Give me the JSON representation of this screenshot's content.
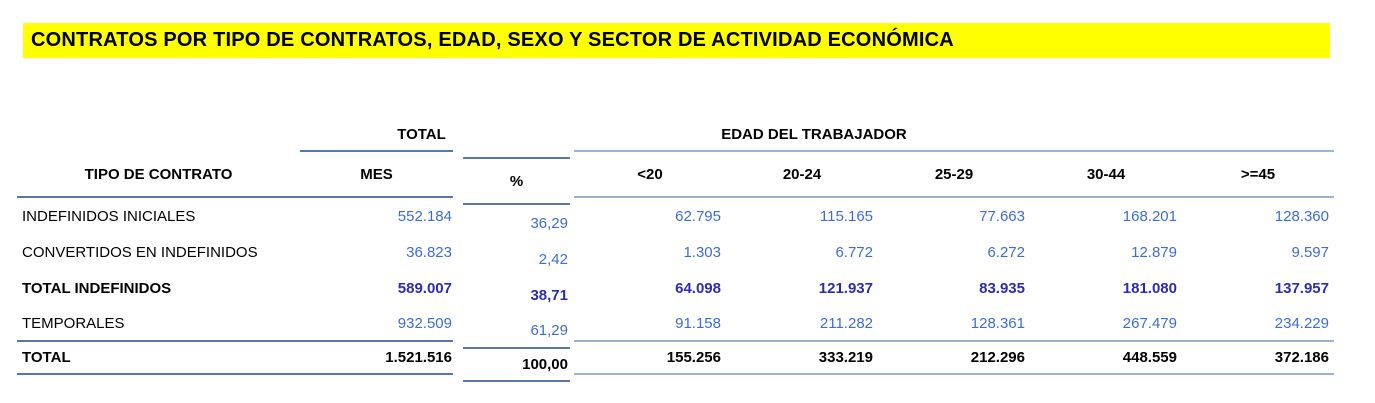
{
  "title": "CONTRATOS POR TIPO DE CONTRATOS, EDAD, SEXO Y SECTOR DE ACTIVIDAD ECONÓMICA",
  "table": {
    "group_headers": {
      "total": "TOTAL",
      "edad": "EDAD DEL TRABAJADOR"
    },
    "columns": {
      "tipo": "TIPO DE CONTRATO",
      "mes": "MES",
      "pct": "%",
      "ages": [
        "<20",
        "20-24",
        "25-29",
        "30-44",
        ">=45"
      ]
    },
    "rows": [
      {
        "label": "INDEFINIDOS INICIALES",
        "mes": "552.184",
        "pct": "36,29",
        "ages": [
          "62.795",
          "115.165",
          "77.663",
          "168.201",
          "128.360"
        ],
        "style": "normal"
      },
      {
        "label": "CONVERTIDOS EN INDEFINIDOS",
        "mes": "36.823",
        "pct": "2,42",
        "ages": [
          "1.303",
          "6.772",
          "6.272",
          "12.879",
          "9.597"
        ],
        "style": "normal"
      },
      {
        "label": "TOTAL INDEFINIDOS",
        "mes": "589.007",
        "pct": "38,71",
        "ages": [
          "64.098",
          "121.937",
          "83.935",
          "181.080",
          "137.957"
        ],
        "style": "subtotal"
      },
      {
        "label": "TEMPORALES",
        "mes": "932.509",
        "pct": "61,29",
        "ages": [
          "91.158",
          "211.282",
          "128.361",
          "267.479",
          "234.229"
        ],
        "style": "normal"
      },
      {
        "label": "TOTAL",
        "mes": "1.521.516",
        "pct": "100,00",
        "ages": [
          "155.256",
          "333.219",
          "212.296",
          "448.559",
          "372.186"
        ],
        "style": "total"
      }
    ]
  },
  "colors": {
    "title_highlight": "#ffff00",
    "value_blue": "#3e6cd2",
    "subtotal_navy": "#2c2cb0",
    "rule_dark": "#5878ab",
    "rule_light": "#9bb3d0"
  }
}
